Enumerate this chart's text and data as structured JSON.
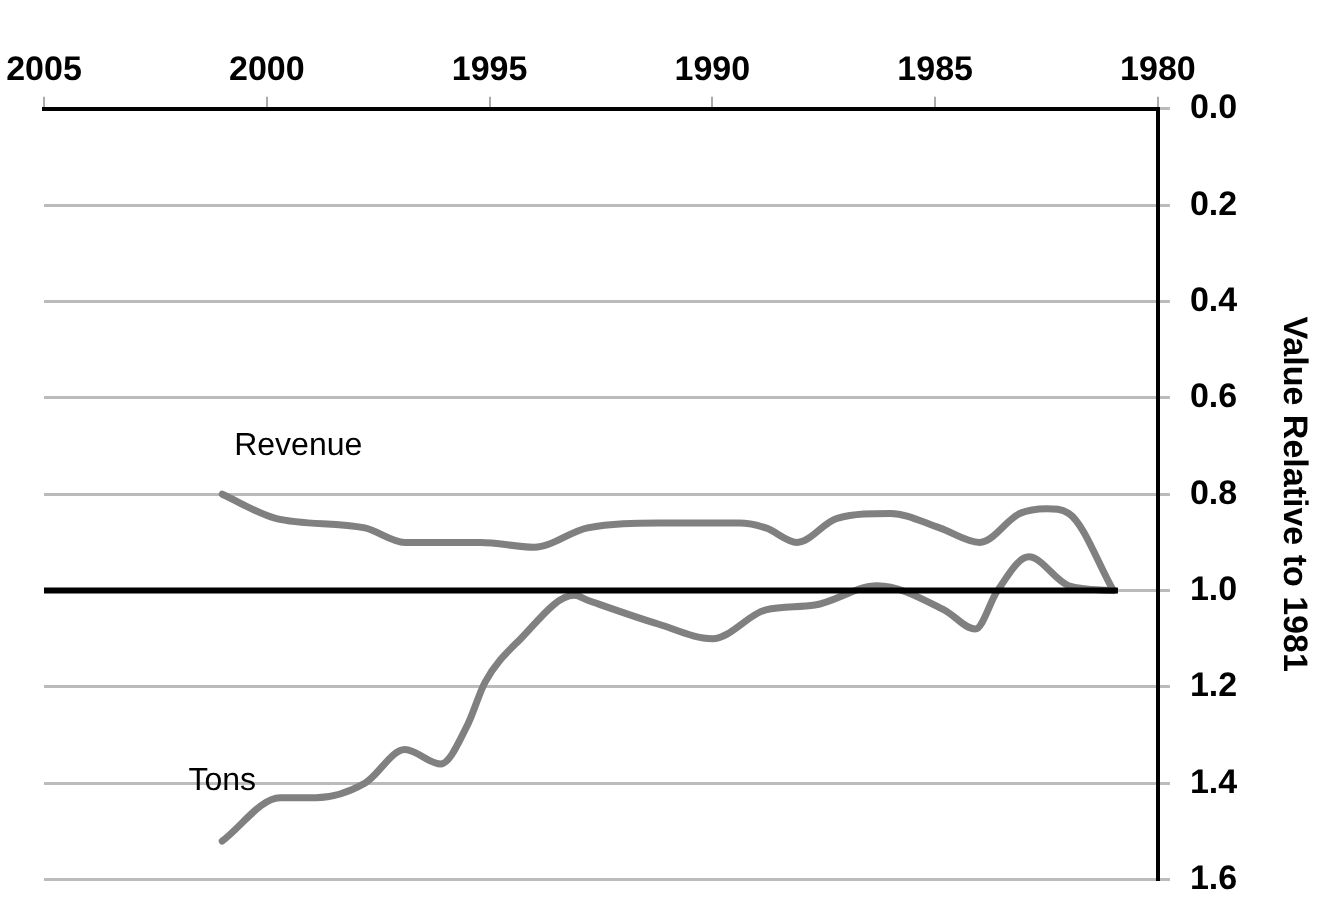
{
  "chart_data": {
    "type": "line",
    "ylabel": "Value Relative to 1981",
    "x": [
      1981,
      1982,
      1982.5,
      1983.1,
      1984,
      1984.9,
      1986,
      1987.2,
      1988.1,
      1988.8,
      1989.4,
      1991.2,
      1992.8,
      1994,
      1995.2,
      1996.9,
      1997.8,
      1999.8,
      2001
    ],
    "series": [
      {
        "name": "Revenue",
        "color": "#808080",
        "values": [
          1.0,
          0.84,
          0.83,
          0.84,
          0.9,
          0.87,
          0.84,
          0.85,
          0.9,
          0.87,
          0.86,
          0.86,
          0.87,
          0.91,
          0.9,
          0.9,
          0.87,
          0.85,
          0.8
        ]
      },
      {
        "name": "Tons",
        "color": "#808080",
        "x": [
          1981,
          1982,
          1982.9,
          1983.6,
          1984.1,
          1984.8,
          1986.3,
          1987.7,
          1988.8,
          1990,
          1991.2,
          1992.8,
          1993.1,
          1994.3,
          1995.1,
          1995.5,
          1996.1,
          1996.9,
          1997.8,
          1998.9,
          1999.7,
          2001
        ],
        "values": [
          1.0,
          0.99,
          0.93,
          1.0,
          1.08,
          1.04,
          0.99,
          1.03,
          1.04,
          1.1,
          1.07,
          1.02,
          1.01,
          1.1,
          1.19,
          1.28,
          1.36,
          1.33,
          1.4,
          1.43,
          1.43,
          1.52
        ]
      }
    ],
    "xlim": [
      2005,
      1980
    ],
    "xticks": [
      1980,
      1985,
      1990,
      1995,
      2000,
      2005
    ],
    "ylim": [
      1.6,
      0
    ],
    "yticks": [
      {
        "value": 0,
        "label": "0.0"
      },
      0.2,
      0.4,
      0.6,
      0.8,
      {
        "value": 1,
        "label": "1.0"
      },
      1.2,
      1.4,
      1.6
    ],
    "ref_lines": [
      {
        "axis": "y",
        "value": 1.0,
        "color": "#000000"
      }
    ],
    "grid": "y",
    "legend": false,
    "marker": "none",
    "line_style": "solid"
  }
}
